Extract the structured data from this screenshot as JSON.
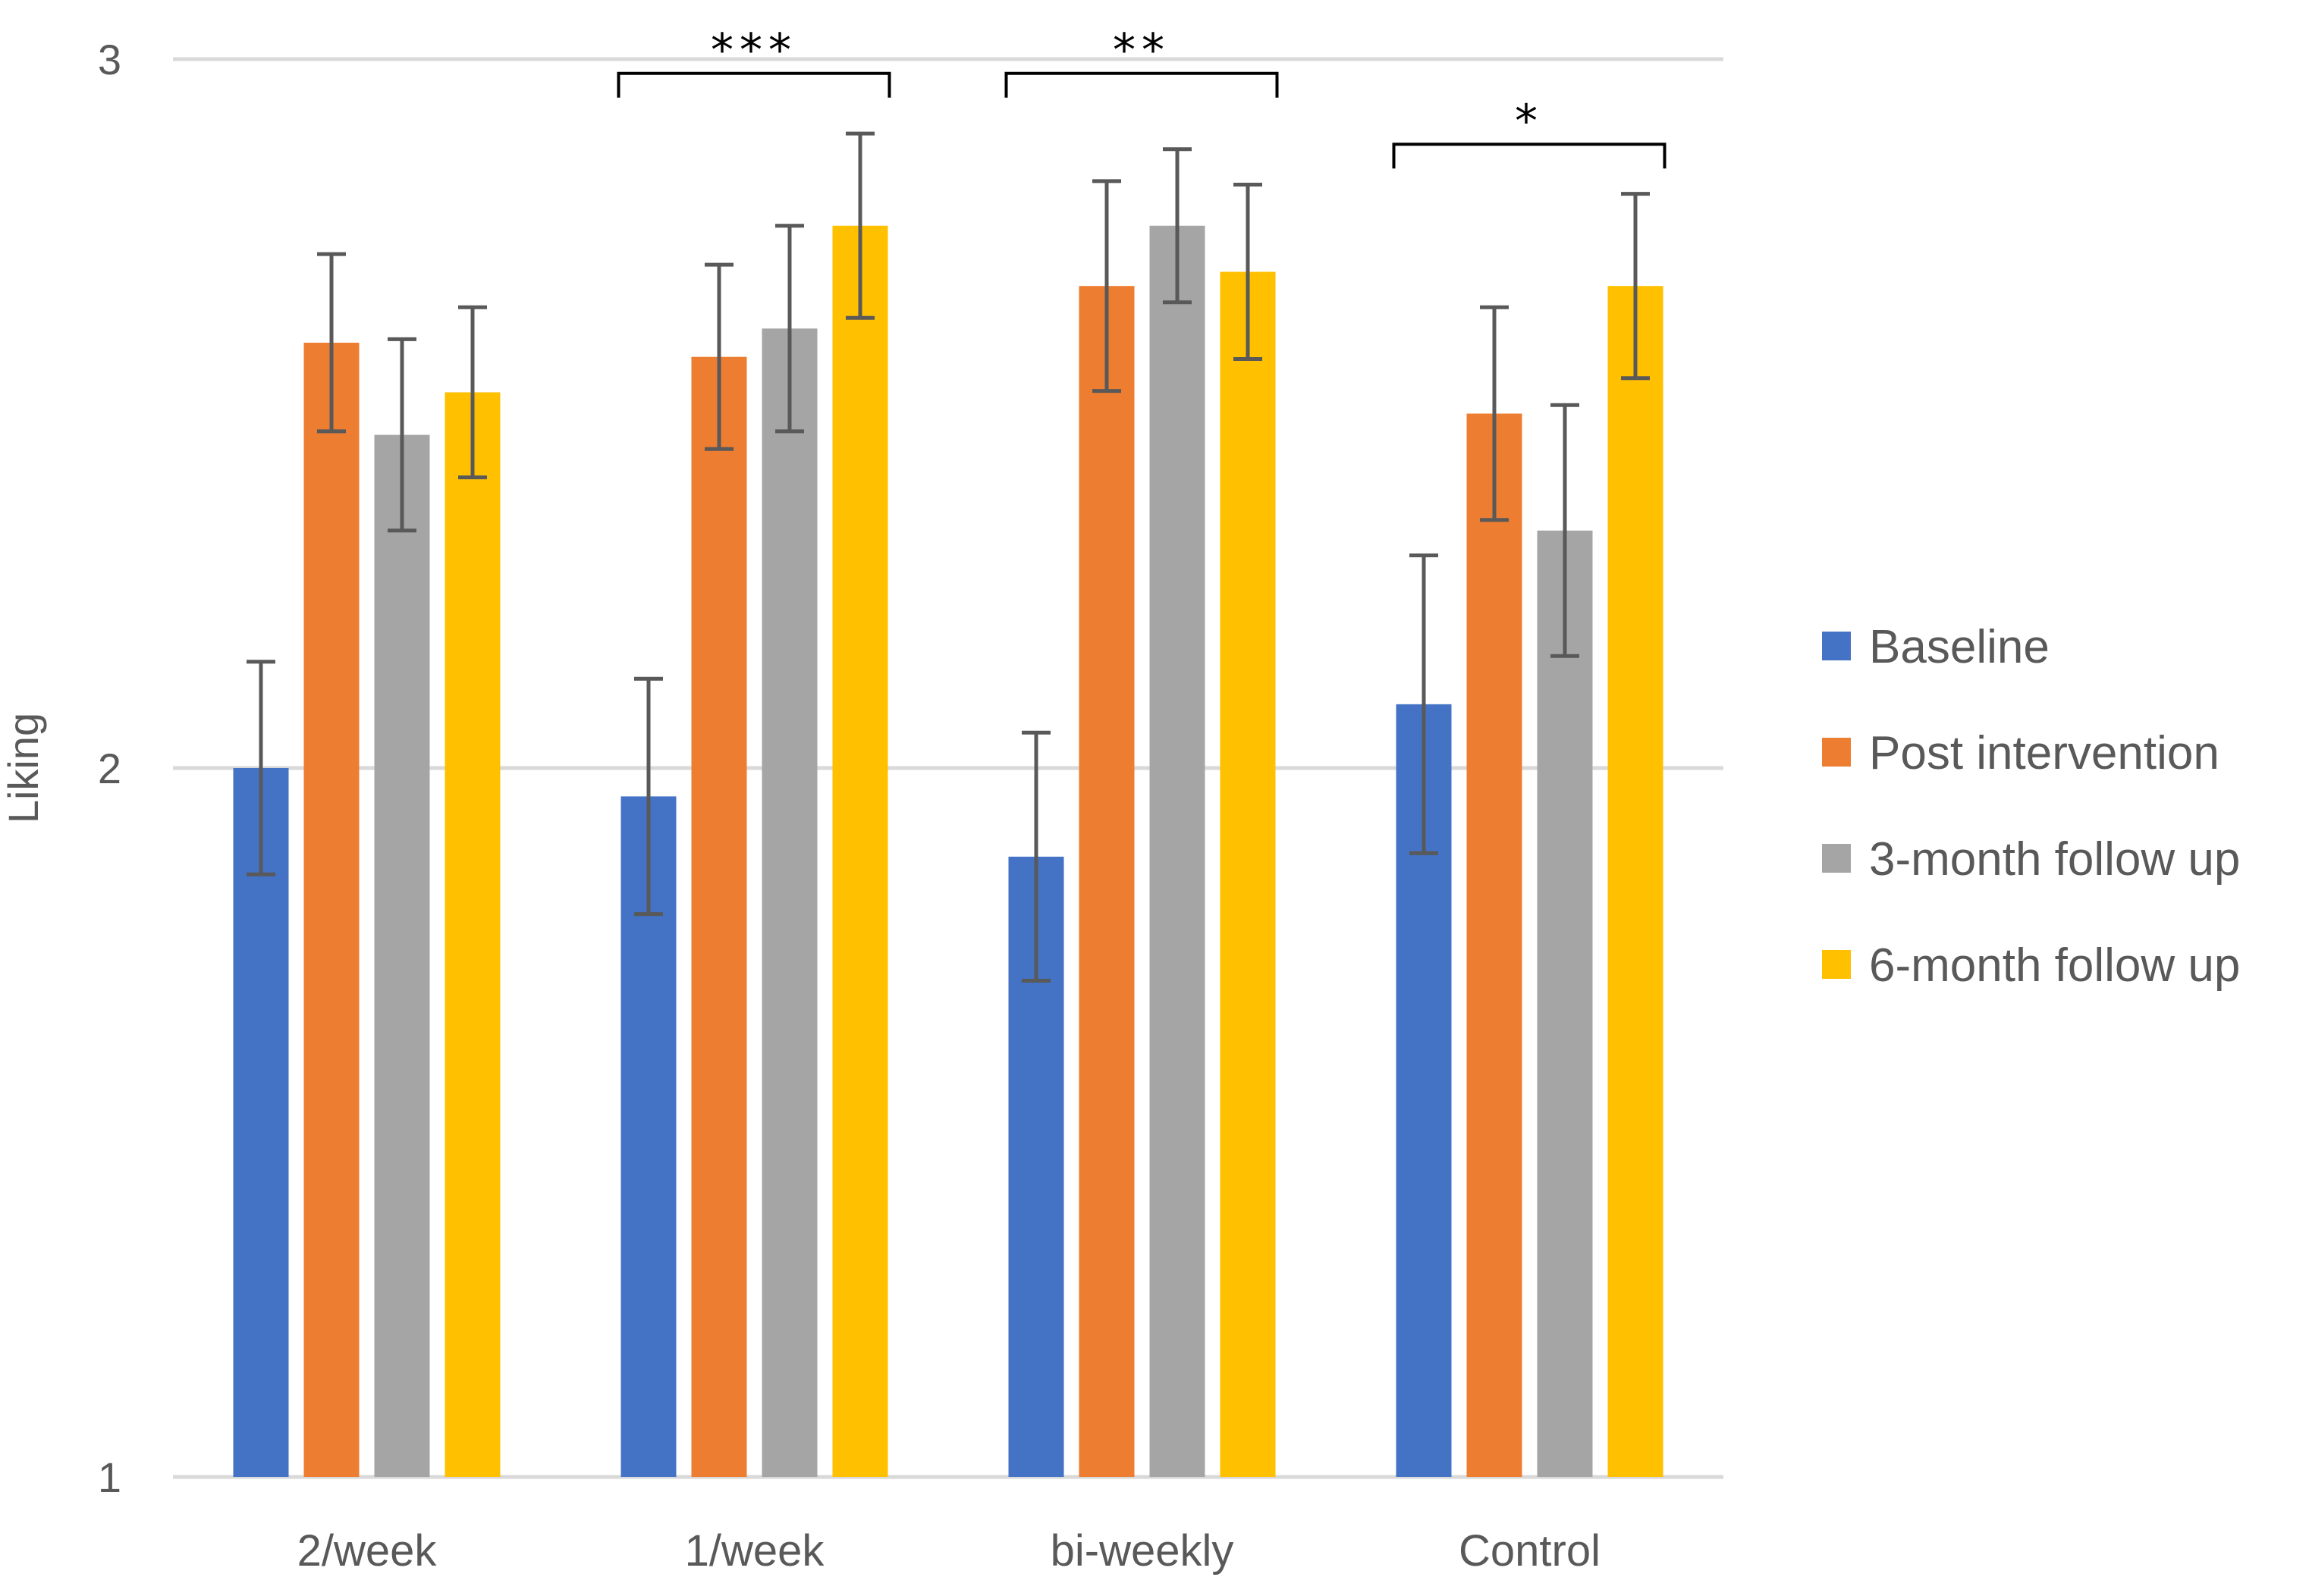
{
  "chart_data": {
    "type": "bar",
    "ylabel": "Liking",
    "xlabel": "",
    "ylim": [
      1,
      3
    ],
    "yticks": [
      1,
      2,
      3
    ],
    "grid": true,
    "legend_position": "right",
    "categories": [
      "2/week",
      "1/week",
      "bi-weekly",
      "Control"
    ],
    "series": [
      {
        "name": "Baseline",
        "color": "#4472C4",
        "values": [
          2.0,
          1.96,
          1.875,
          2.09
        ],
        "error": [
          0.15,
          0.166,
          0.175,
          0.21
        ]
      },
      {
        "name": "Post intervention",
        "color": "#ED7D31",
        "values": [
          2.6,
          2.58,
          2.68,
          2.5
        ],
        "error": [
          0.125,
          0.13,
          0.148,
          0.15
        ]
      },
      {
        "name": "3-month follow up",
        "color": "#A5A5A5",
        "values": [
          2.47,
          2.62,
          2.765,
          2.335
        ],
        "error": [
          0.135,
          0.145,
          0.108,
          0.177
        ]
      },
      {
        "name": "6-month follow up",
        "color": "#FFC000",
        "values": [
          2.53,
          2.765,
          2.7,
          2.68
        ],
        "error": [
          0.12,
          0.13,
          0.123,
          0.13
        ]
      }
    ],
    "annotations": [
      {
        "category": "1/week",
        "label": "***",
        "bracket_value": 2.98
      },
      {
        "category": "bi-weekly",
        "label": "**",
        "bracket_value": 2.98
      },
      {
        "category": "Control",
        "label": "*",
        "bracket_value": 2.88
      }
    ]
  }
}
